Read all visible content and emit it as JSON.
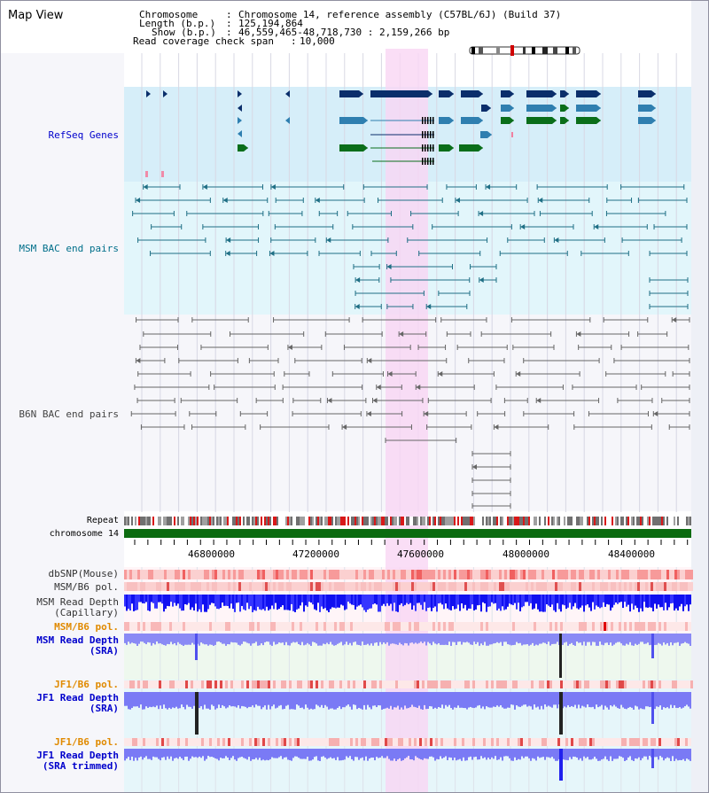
{
  "title": "Map View",
  "header": {
    "chromosome_key": "Chromosome",
    "chromosome_value": "Chromosome 14, reference assembly (C57BL/6J) (Build 37)",
    "length_key": "Length (b.p.)",
    "length_value": "125,194,864",
    "show_key": "Show (b.p.)",
    "show_value": "46,559,465-48,718,730 : 2,159,266 bp",
    "coverage_key": "Read coverage check span",
    "coverage_value": "10,000"
  },
  "tracks": {
    "refseq": "RefSeq Genes",
    "msm_bac": "MSM BAC end pairs",
    "b6n_bac": "B6N BAC end pairs",
    "repeat": "Repeat",
    "chromosome": "chromosome 14",
    "dbsnp": "dbSNP(Mouse)",
    "msm_b6_pol": "MSM/B6 pol.",
    "msm_depth_cap_1": "MSM Read Depth",
    "msm_depth_cap_2": "(Capillary)",
    "msm_b6_pol_2": "MSM/B6 pol.",
    "msm_depth_sra_1": "MSM Read Depth",
    "msm_depth_sra_2": "(SRA)",
    "jf1_b6_pol": "JF1/B6 pol.",
    "jf1_depth_sra_1": "JF1 Read Depth",
    "jf1_depth_sra_2": "(SRA)",
    "jf1_b6_pol_2": "JF1/B6 pol.",
    "jf1_depth_trim_1": "JF1 Read Depth",
    "jf1_depth_trim_2": "(SRA trimmed)"
  },
  "ruler": {
    "ticks": [
      "46800000",
      "47200000",
      "47600000",
      "48000000",
      "48400000"
    ]
  },
  "colors": {
    "highlight": "#f9d6f4",
    "refseq_bg": "#d6eef9",
    "msm_bg": "#e2f6fb",
    "b6n_bg": "#f6f6fa",
    "gene_dark": "#0b2e6b",
    "gene_mid": "#2f7fb0",
    "gene_green": "#0a6e1a",
    "chromosome": "#0b6b10",
    "label_blue": "#0000cc",
    "label_orange": "#e08a00",
    "label_teal": "#006f8a"
  }
}
